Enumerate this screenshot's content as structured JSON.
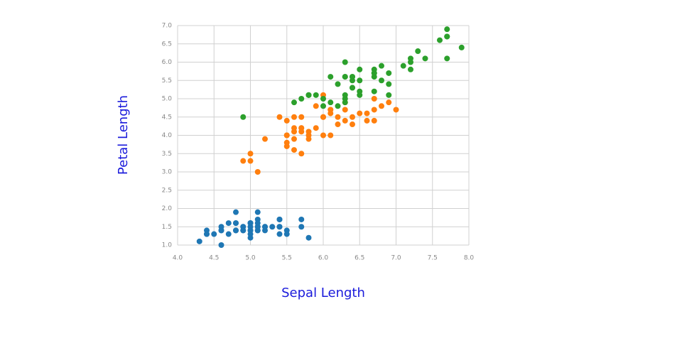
{
  "chart_data": {
    "type": "scatter",
    "x_label": "Sepal Length",
    "y_label": "Petal Length",
    "xlim": [
      4.0,
      8.0
    ],
    "ylim": [
      1.0,
      7.0
    ],
    "xticks": [
      {
        "value": 4,
        "label": "4.0"
      },
      4.5,
      {
        "value": 5,
        "label": "5.0"
      },
      5.5,
      {
        "value": 6,
        "label": "6.0"
      },
      6.5,
      {
        "value": 7,
        "label": "7.0"
      },
      7.5,
      {
        "value": 8,
        "label": "8.0"
      }
    ],
    "yticks": [
      {
        "value": 1,
        "label": "1.0"
      },
      1.5,
      {
        "value": 2,
        "label": "2.0"
      },
      2.5,
      {
        "value": 3,
        "label": "3.0"
      },
      3.5,
      {
        "value": 4,
        "label": "4.0"
      },
      4.5,
      {
        "value": 5,
        "label": "5.0"
      },
      5.5,
      {
        "value": 6,
        "label": "6.0"
      },
      6.5,
      {
        "value": 7,
        "label": "7.0"
      }
    ],
    "grid": true,
    "series": [
      {
        "color": "#1f77b4",
        "x": [
          5.1,
          4.9,
          4.7,
          4.6,
          5.0,
          5.4,
          4.6,
          5.0,
          4.4,
          4.9,
          5.4,
          4.8,
          4.8,
          4.3,
          5.8,
          5.7,
          5.4,
          5.1,
          5.7,
          5.1,
          5.4,
          5.1,
          4.6,
          5.1,
          4.8,
          5.0,
          5.0,
          5.2,
          5.2,
          4.7,
          4.8,
          5.4,
          5.2,
          5.5,
          4.9,
          5.0,
          5.5,
          4.9,
          4.4,
          5.1,
          5.0,
          4.5,
          4.4,
          5.0,
          5.1,
          4.8,
          5.1,
          4.6,
          5.3,
          5.0
        ],
        "values": [
          1.4,
          1.4,
          1.3,
          1.5,
          1.4,
          1.7,
          1.4,
          1.5,
          1.4,
          1.5,
          1.5,
          1.6,
          1.4,
          1.1,
          1.2,
          1.5,
          1.3,
          1.4,
          1.7,
          1.5,
          1.7,
          1.5,
          1.0,
          1.7,
          1.9,
          1.6,
          1.6,
          1.5,
          1.4,
          1.6,
          1.6,
          1.5,
          1.5,
          1.4,
          1.5,
          1.2,
          1.3,
          1.4,
          1.3,
          1.5,
          1.3,
          1.3,
          1.3,
          1.6,
          1.9,
          1.4,
          1.6,
          1.4,
          1.5,
          1.4
        ]
      },
      {
        "color": "#ff7f0e",
        "x": [
          7.0,
          6.4,
          6.9,
          5.5,
          6.5,
          5.7,
          6.3,
          4.9,
          6.6,
          5.2,
          5.0,
          5.9,
          6.0,
          6.1,
          5.6,
          6.7,
          5.6,
          5.8,
          6.2,
          5.6,
          5.9,
          6.1,
          6.3,
          6.1,
          6.4,
          6.6,
          6.8,
          6.7,
          6.0,
          5.7,
          5.5,
          5.5,
          5.8,
          6.0,
          5.4,
          6.0,
          6.7,
          6.3,
          5.6,
          5.5,
          5.5,
          6.1,
          5.8,
          5.0,
          5.6,
          5.7,
          5.7,
          6.2,
          5.1,
          5.7
        ],
        "values": [
          4.7,
          4.5,
          4.9,
          4.0,
          4.6,
          4.5,
          4.7,
          3.3,
          4.6,
          3.9,
          3.5,
          4.2,
          4.0,
          4.7,
          3.6,
          4.4,
          4.5,
          4.1,
          4.5,
          3.9,
          4.8,
          4.0,
          4.9,
          4.7,
          4.3,
          4.4,
          4.8,
          5.0,
          4.5,
          3.5,
          3.8,
          3.7,
          3.9,
          5.1,
          4.5,
          4.5,
          4.7,
          4.4,
          4.1,
          4.0,
          4.4,
          4.6,
          4.0,
          3.3,
          4.2,
          4.2,
          4.2,
          4.3,
          3.0,
          4.1
        ]
      },
      {
        "color": "#2ca02c",
        "x": [
          6.3,
          5.8,
          7.1,
          6.3,
          6.5,
          7.6,
          4.9,
          7.3,
          6.7,
          7.2,
          6.5,
          6.4,
          6.8,
          5.7,
          5.8,
          6.4,
          6.5,
          7.7,
          7.7,
          6.0,
          6.9,
          5.6,
          7.7,
          6.3,
          6.7,
          7.2,
          6.2,
          6.1,
          6.4,
          7.2,
          7.4,
          7.9,
          6.4,
          6.3,
          6.1,
          7.7,
          6.3,
          6.4,
          6.0,
          6.9,
          6.7,
          6.9,
          5.8,
          6.8,
          6.7,
          6.7,
          6.3,
          6.5,
          6.2,
          5.9
        ],
        "values": [
          6.0,
          5.1,
          5.9,
          5.6,
          5.8,
          6.6,
          4.5,
          6.3,
          5.8,
          6.1,
          5.1,
          5.3,
          5.5,
          5.0,
          5.1,
          5.3,
          5.5,
          6.7,
          6.9,
          5.0,
          5.7,
          4.9,
          6.7,
          4.9,
          5.7,
          6.0,
          4.8,
          4.9,
          5.6,
          5.8,
          6.1,
          6.4,
          5.6,
          5.1,
          5.6,
          6.1,
          5.6,
          5.5,
          4.8,
          5.4,
          5.6,
          5.1,
          5.1,
          5.9,
          5.7,
          5.2,
          5.0,
          5.2,
          5.4,
          5.1
        ]
      }
    ]
  }
}
